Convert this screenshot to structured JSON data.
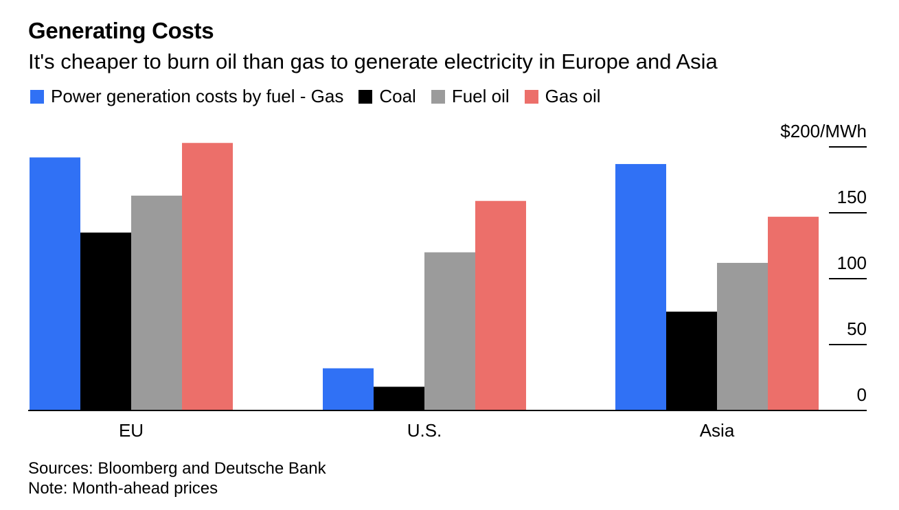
{
  "chart_data": {
    "type": "bar",
    "title": "Generating Costs",
    "subtitle": "It's cheaper to burn oil than gas to generate electricity in Europe and Asia",
    "categories": [
      "EU",
      "U.S.",
      "Asia"
    ],
    "series": [
      {
        "name": "Power generation costs by fuel - Gas",
        "color": "#3071f5",
        "values": [
          192,
          32,
          187
        ]
      },
      {
        "name": "Coal",
        "color": "#000000",
        "values": [
          135,
          18,
          75
        ]
      },
      {
        "name": "Fuel oil",
        "color": "#9b9b9b",
        "values": [
          163,
          120,
          112
        ]
      },
      {
        "name": "Gas oil",
        "color": "#ec6f6a",
        "values": [
          203,
          159,
          147
        ]
      }
    ],
    "yticks": [
      0,
      50,
      100,
      150,
      200
    ],
    "ytick_labels": [
      "0",
      "50",
      "100",
      "150",
      "$200/MWh"
    ],
    "ylim": [
      0,
      200
    ],
    "xlabel": "",
    "ylabel": "",
    "y_axis_side": "right",
    "legend_position": "top-left",
    "grid": false
  },
  "footer": {
    "sources": "Sources: Bloomberg and Deutsche Bank",
    "note": "Note: Month-ahead prices"
  }
}
